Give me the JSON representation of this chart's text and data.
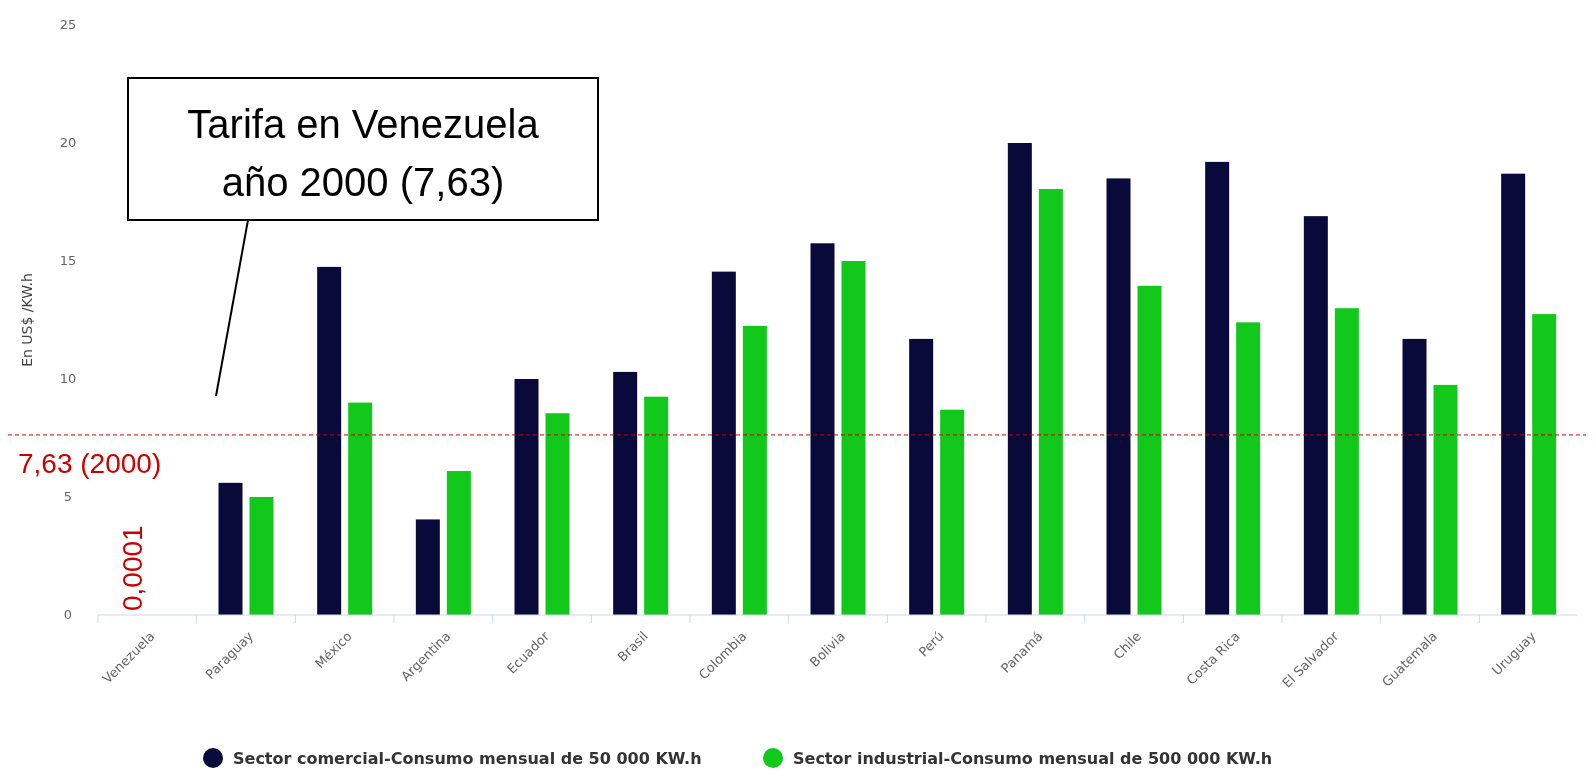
{
  "chart_data": {
    "type": "bar",
    "ylabel": "En US$ /KW.h",
    "categories": [
      "Venezuela",
      "Paraguay",
      "México",
      "Argentina",
      "Ecuador",
      "Brasil",
      "Colombia",
      "Bolivia",
      "Perú",
      "Panamá",
      "Chile",
      "Costa Rica",
      "El Salvador",
      "Guatemala",
      "Uruguay"
    ],
    "series": [
      {
        "name": "Sector comercial-Consumo mensual de 50 000 KW.h",
        "color": "#0a0a3a",
        "values": [
          0.0001,
          5.6,
          14.75,
          4.05,
          10,
          10.3,
          14.55,
          15.75,
          11.7,
          20,
          18.5,
          19.2,
          16.9,
          11.7,
          18.7
        ],
        "value_labels": [
          "0,0001",
          null,
          null,
          null,
          null,
          null,
          null,
          null,
          null,
          null,
          null,
          null,
          null,
          null,
          null
        ]
      },
      {
        "name": "Sector industrial-Consumo mensual de 500 000 KW.h",
        "color": "#12c81a",
        "values": [
          null,
          5,
          9,
          6.1,
          8.55,
          9.25,
          12.25,
          15,
          8.7,
          18.05,
          13.95,
          12.4,
          13,
          9.75,
          12.75
        ]
      }
    ],
    "ylim": [
      0,
      25
    ],
    "yticks": [
      0,
      5,
      10,
      15,
      20,
      25
    ],
    "grid": false,
    "legend": "bottom",
    "ref_lines": [
      {
        "axis": "y",
        "value": 7.63,
        "label": "7,63 (2000)",
        "color": "#cc0000",
        "line_style": "dashed"
      }
    ],
    "annotations": [
      "Tarifa en Venezuela año 2000 (7,63)"
    ]
  }
}
